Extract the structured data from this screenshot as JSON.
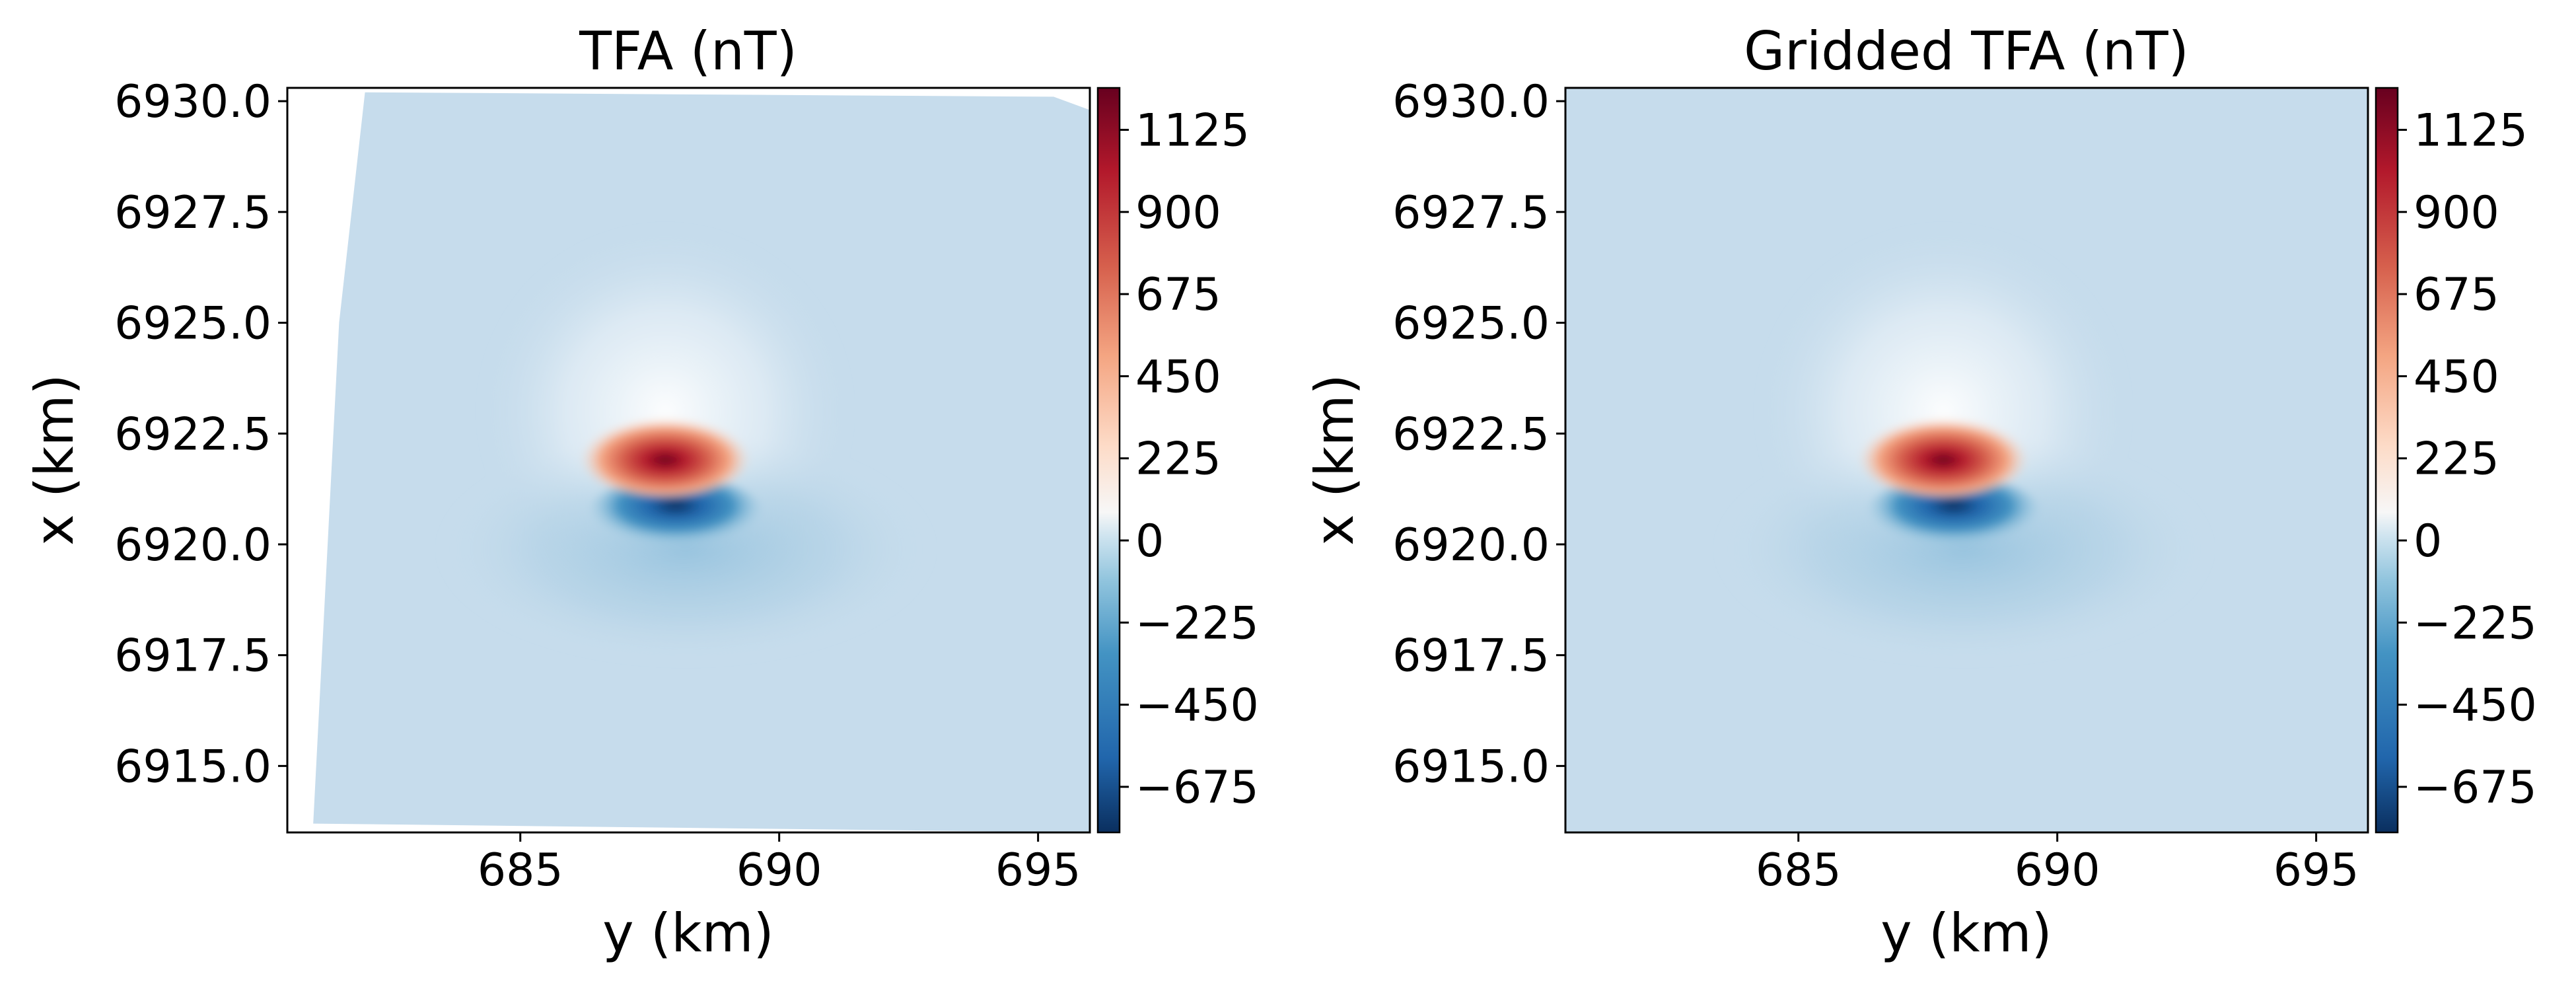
{
  "colorbar_ticks": [
    1125,
    900,
    675,
    450,
    225,
    0,
    -225,
    -450,
    -675
  ],
  "colorbar_tick_labels": [
    "1125",
    "900",
    "675",
    "450",
    "225",
    "0",
    "−225",
    "−450",
    "−675"
  ],
  "colormap": "RdBu_r",
  "colors": {
    "min": "#0a2f5f",
    "neg_strong": "#2166ac",
    "neg_mid": "#4393c3",
    "background": "#c6dcec",
    "neutral": "#f7f7f7",
    "pos_mid": "#f4a582",
    "pos_strong": "#d6604d",
    "max": "#67001f"
  },
  "chart_data": [
    {
      "type": "heatmap",
      "title": "TFA (nT)",
      "xlabel": "y (km)",
      "ylabel": "x (km)",
      "xlim": [
        680.5,
        696.0
      ],
      "ylim": [
        6913.5,
        6930.3
      ],
      "xticks": [
        685,
        690,
        695
      ],
      "xtick_labels": [
        "685",
        "690",
        "695"
      ],
      "yticks": [
        6915.0,
        6917.5,
        6920.0,
        6922.5,
        6925.0,
        6927.5,
        6930.0
      ],
      "ytick_labels": [
        "6915.0",
        "6917.5",
        "6920.0",
        "6922.5",
        "6925.0",
        "6927.5",
        "6930.0"
      ],
      "color_range": [
        -800,
        1240
      ],
      "background_value": -80,
      "anomaly": {
        "positive_peak": {
          "y": 687.8,
          "x": 6922.0,
          "value": 1240
        },
        "negative_peak": {
          "y": 688.0,
          "x": 6920.7,
          "value": -780
        }
      },
      "survey_boundary": [
        [
          681.0,
          6913.7
        ],
        [
          681.5,
          6925.0
        ],
        [
          682.0,
          6930.2
        ],
        [
          695.3,
          6930.1
        ],
        [
          696.0,
          6929.8
        ],
        [
          696.0,
          6913.5
        ],
        [
          681.0,
          6913.7
        ]
      ]
    },
    {
      "type": "heatmap",
      "title": "Gridded TFA (nT)",
      "xlabel": "y (km)",
      "ylabel": "x (km)",
      "xlim": [
        680.5,
        696.0
      ],
      "ylim": [
        6913.5,
        6930.3
      ],
      "xticks": [
        685,
        690,
        695
      ],
      "xtick_labels": [
        "685",
        "690",
        "695"
      ],
      "yticks": [
        6915.0,
        6917.5,
        6920.0,
        6922.5,
        6925.0,
        6927.5,
        6930.0
      ],
      "ytick_labels": [
        "6915.0",
        "6917.5",
        "6920.0",
        "6922.5",
        "6925.0",
        "6927.5",
        "6930.0"
      ],
      "color_range": [
        -800,
        1240
      ],
      "background_value": -80,
      "anomaly": {
        "positive_peak": {
          "y": 687.8,
          "x": 6922.0,
          "value": 1240
        },
        "negative_peak": {
          "y": 688.0,
          "x": 6920.7,
          "value": -780
        }
      }
    }
  ]
}
